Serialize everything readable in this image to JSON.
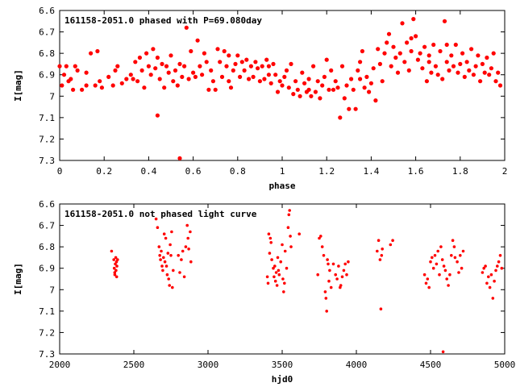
{
  "chart_data": [
    {
      "type": "scatter",
      "title": "161158-2051.0 phased with P=69.080day",
      "xlabel": "phase",
      "ylabel": "I[mag]",
      "xlim": [
        0,
        2
      ],
      "ylim": [
        6.6,
        7.3
      ],
      "y_inverted": true,
      "xticks": [
        "0",
        "0.2",
        "0.4",
        "0.6",
        "0.8",
        "1",
        "1.2",
        "1.4",
        "1.6",
        "1.8",
        "2"
      ],
      "yticks": [
        "6.6",
        "6.7",
        "6.8",
        "6.9",
        "7",
        "7.1",
        "7.2",
        "7.3"
      ],
      "marker_color": "#ff0000",
      "grid": false,
      "points": [
        [
          0.0,
          6.86
        ],
        [
          0.01,
          6.95
        ],
        [
          0.02,
          6.9
        ],
        [
          0.03,
          6.86
        ],
        [
          0.04,
          6.93
        ],
        [
          0.05,
          6.92
        ],
        [
          0.06,
          6.97
        ],
        [
          0.07,
          6.86
        ],
        [
          0.1,
          6.97
        ],
        [
          0.12,
          6.89
        ],
        [
          0.14,
          6.8
        ],
        [
          0.16,
          6.95
        ],
        [
          0.17,
          6.79
        ],
        [
          0.18,
          6.93
        ],
        [
          0.19,
          6.96
        ],
        [
          0.22,
          6.91
        ],
        [
          0.24,
          6.95
        ],
        [
          0.26,
          6.86
        ],
        [
          0.28,
          6.94
        ],
        [
          0.3,
          6.92
        ],
        [
          0.32,
          6.9
        ],
        [
          0.34,
          6.84
        ],
        [
          0.35,
          6.93
        ],
        [
          0.36,
          6.82
        ],
        [
          0.37,
          6.88
        ],
        [
          0.38,
          6.96
        ],
        [
          0.39,
          6.8
        ],
        [
          0.4,
          6.86
        ],
        [
          0.41,
          6.9
        ],
        [
          0.42,
          6.78
        ],
        [
          0.43,
          6.87
        ],
        [
          0.44,
          6.82
        ],
        [
          0.44,
          7.09
        ],
        [
          0.45,
          6.92
        ],
        [
          0.46,
          6.85
        ],
        [
          0.47,
          6.96
        ],
        [
          0.48,
          6.86
        ],
        [
          0.49,
          6.89
        ],
        [
          0.5,
          6.81
        ],
        [
          0.51,
          6.93
        ],
        [
          0.52,
          6.88
        ],
        [
          0.53,
          6.95
        ],
        [
          0.54,
          6.85
        ],
        [
          0.55,
          6.91
        ],
        [
          0.56,
          6.86
        ],
        [
          0.57,
          6.68
        ],
        [
          0.58,
          6.92
        ],
        [
          0.59,
          6.79
        ],
        [
          0.6,
          6.89
        ],
        [
          0.61,
          6.91
        ],
        [
          0.62,
          6.74
        ],
        [
          0.63,
          6.86
        ],
        [
          0.64,
          6.9
        ],
        [
          0.65,
          6.8
        ],
        [
          0.66,
          6.84
        ],
        [
          0.67,
          6.97
        ],
        [
          0.68,
          6.88
        ],
        [
          0.69,
          6.93
        ],
        [
          0.7,
          6.97
        ],
        [
          0.71,
          6.78
        ],
        [
          0.72,
          6.84
        ],
        [
          0.73,
          6.91
        ],
        [
          0.74,
          6.79
        ],
        [
          0.75,
          6.86
        ],
        [
          0.76,
          6.93
        ],
        [
          0.77,
          6.96
        ],
        [
          0.78,
          6.88
        ],
        [
          0.79,
          6.85
        ],
        [
          0.8,
          6.81
        ],
        [
          0.81,
          6.91
        ],
        [
          0.82,
          6.84
        ],
        [
          0.83,
          6.88
        ],
        [
          0.84,
          6.83
        ],
        [
          0.85,
          6.92
        ],
        [
          0.86,
          6.86
        ],
        [
          0.87,
          6.91
        ],
        [
          0.88,
          6.84
        ],
        [
          0.89,
          6.87
        ],
        [
          0.9,
          6.93
        ],
        [
          0.91,
          6.86
        ],
        [
          0.92,
          6.92
        ],
        [
          0.93,
          6.83
        ],
        [
          0.94,
          6.9
        ],
        [
          0.95,
          6.94
        ],
        [
          0.96,
          6.85
        ],
        [
          0.97,
          6.9
        ],
        [
          0.98,
          6.98
        ],
        [
          0.99,
          6.93
        ],
        [
          1.0,
          6.95
        ],
        [
          1.01,
          6.91
        ],
        [
          1.02,
          6.88
        ],
        [
          1.03,
          6.96
        ],
        [
          1.04,
          6.85
        ],
        [
          1.05,
          6.99
        ],
        [
          1.06,
          6.93
        ],
        [
          1.07,
          6.97
        ],
        [
          1.08,
          7.0
        ],
        [
          1.09,
          6.89
        ],
        [
          1.1,
          6.94
        ],
        [
          1.11,
          6.98
        ],
        [
          1.12,
          6.92
        ],
        [
          1.13,
          7.0
        ],
        [
          1.14,
          6.86
        ],
        [
          1.15,
          6.98
        ],
        [
          1.16,
          6.93
        ],
        [
          1.17,
          7.01
        ],
        [
          1.18,
          6.95
        ],
        [
          1.19,
          6.91
        ],
        [
          1.2,
          6.83
        ],
        [
          1.21,
          6.97
        ],
        [
          1.22,
          6.88
        ],
        [
          1.23,
          6.97
        ],
        [
          1.24,
          6.93
        ],
        [
          1.25,
          6.96
        ],
        [
          1.26,
          7.1
        ],
        [
          1.27,
          6.86
        ],
        [
          1.28,
          7.01
        ],
        [
          1.29,
          6.95
        ],
        [
          1.3,
          7.06
        ],
        [
          1.31,
          6.92
        ],
        [
          1.32,
          6.97
        ],
        [
          1.33,
          7.06
        ],
        [
          1.34,
          6.88
        ],
        [
          1.35,
          6.84
        ],
        [
          1.36,
          6.79
        ],
        [
          1.37,
          6.96
        ],
        [
          1.38,
          6.91
        ],
        [
          1.39,
          6.98
        ],
        [
          1.4,
          6.94
        ],
        [
          1.41,
          6.87
        ],
        [
          1.42,
          7.02
        ],
        [
          1.43,
          6.78
        ],
        [
          1.44,
          6.85
        ],
        [
          1.45,
          6.93
        ],
        [
          1.46,
          6.8
        ],
        [
          1.47,
          6.75
        ],
        [
          1.48,
          6.71
        ],
        [
          1.49,
          6.86
        ],
        [
          1.5,
          6.77
        ],
        [
          1.51,
          6.82
        ],
        [
          1.52,
          6.89
        ],
        [
          1.53,
          6.8
        ],
        [
          1.54,
          6.66
        ],
        [
          1.55,
          6.84
        ],
        [
          1.56,
          6.75
        ],
        [
          1.57,
          6.88
        ],
        [
          1.58,
          6.79
        ],
        [
          1.59,
          6.64
        ],
        [
          1.6,
          6.72
        ],
        [
          1.61,
          6.83
        ],
        [
          1.62,
          6.8
        ],
        [
          1.63,
          6.87
        ],
        [
          1.64,
          6.77
        ],
        [
          1.65,
          6.93
        ],
        [
          1.66,
          6.84
        ],
        [
          1.67,
          6.89
        ],
        [
          1.68,
          6.76
        ],
        [
          1.69,
          6.86
        ],
        [
          1.7,
          6.9
        ],
        [
          1.71,
          6.79
        ],
        [
          1.72,
          6.92
        ],
        [
          1.73,
          6.65
        ],
        [
          1.74,
          6.84
        ],
        [
          1.75,
          6.88
        ],
        [
          1.76,
          6.81
        ],
        [
          1.77,
          6.86
        ],
        [
          1.78,
          6.76
        ],
        [
          1.79,
          6.89
        ],
        [
          1.8,
          6.85
        ],
        [
          1.81,
          6.8
        ],
        [
          1.82,
          6.91
        ],
        [
          1.83,
          6.84
        ],
        [
          1.84,
          6.88
        ],
        [
          1.85,
          6.78
        ],
        [
          1.86,
          6.9
        ],
        [
          1.87,
          6.86
        ],
        [
          1.88,
          6.81
        ],
        [
          1.89,
          6.93
        ],
        [
          1.9,
          6.85
        ],
        [
          1.91,
          6.89
        ],
        [
          1.92,
          6.82
        ],
        [
          1.93,
          6.9
        ],
        [
          1.94,
          6.87
        ],
        [
          1.95,
          6.8
        ],
        [
          1.96,
          6.93
        ],
        [
          1.97,
          6.89
        ],
        [
          1.98,
          6.95
        ],
        [
          0.54,
          7.29
        ],
        [
          0.12,
          6.95
        ],
        [
          0.08,
          6.88
        ],
        [
          0.25,
          6.88
        ],
        [
          0.33,
          6.92
        ],
        [
          1.12,
          6.97
        ],
        [
          1.35,
          6.92
        ],
        [
          1.58,
          6.73
        ],
        [
          1.66,
          6.81
        ],
        [
          1.74,
          6.76
        ],
        [
          0.76,
          6.81
        ],
        [
          0.94,
          6.86
        ]
      ]
    },
    {
      "type": "scatter",
      "title": "161158-2051.0 not phased light curve",
      "xlabel": "hjd0",
      "ylabel": "I[mag]",
      "xlim": [
        2000,
        5000
      ],
      "ylim": [
        6.6,
        7.3
      ],
      "y_inverted": true,
      "xticks": [
        "2000",
        "2500",
        "3000",
        "3500",
        "4000",
        "4500",
        "5000"
      ],
      "yticks": [
        "6.6",
        "6.7",
        "6.8",
        "6.9",
        "7",
        "7.1",
        "7.2",
        "7.3"
      ],
      "marker_color": "#ff0000",
      "grid": false,
      "points": [
        [
          2350,
          6.82
        ],
        [
          2365,
          6.86
        ],
        [
          2368,
          6.9
        ],
        [
          2372,
          6.93
        ],
        [
          2375,
          6.88
        ],
        [
          2378,
          6.85
        ],
        [
          2380,
          6.91
        ],
        [
          2383,
          6.87
        ],
        [
          2386,
          6.89
        ],
        [
          2390,
          6.86
        ],
        [
          2371,
          6.92
        ],
        [
          2384,
          6.94
        ],
        [
          2650,
          6.67
        ],
        [
          2660,
          6.71
        ],
        [
          2670,
          6.8
        ],
        [
          2675,
          6.84
        ],
        [
          2680,
          6.86
        ],
        [
          2685,
          6.82
        ],
        [
          2690,
          6.89
        ],
        [
          2695,
          6.91
        ],
        [
          2700,
          6.85
        ],
        [
          2705,
          6.74
        ],
        [
          2710,
          6.87
        ],
        [
          2715,
          6.76
        ],
        [
          2720,
          6.89
        ],
        [
          2725,
          6.93
        ],
        [
          2730,
          6.83
        ],
        [
          2735,
          6.95
        ],
        [
          2740,
          6.98
        ],
        [
          2745,
          6.79
        ],
        [
          2750,
          6.84
        ],
        [
          2755,
          6.73
        ],
        [
          2760,
          6.99
        ],
        [
          2765,
          6.91
        ],
        [
          2800,
          6.84
        ],
        [
          2810,
          6.92
        ],
        [
          2820,
          6.86
        ],
        [
          2830,
          6.82
        ],
        [
          2840,
          6.94
        ],
        [
          2850,
          6.8
        ],
        [
          2860,
          6.7
        ],
        [
          2865,
          6.76
        ],
        [
          2870,
          6.81
        ],
        [
          2880,
          6.73
        ],
        [
          2885,
          6.87
        ],
        [
          3400,
          6.94
        ],
        [
          3405,
          6.97
        ],
        [
          3410,
          6.74
        ],
        [
          3415,
          6.83
        ],
        [
          3420,
          6.76
        ],
        [
          3425,
          6.78
        ],
        [
          3430,
          6.86
        ],
        [
          3440,
          6.9
        ],
        [
          3445,
          6.94
        ],
        [
          3450,
          6.89
        ],
        [
          3455,
          6.96
        ],
        [
          3460,
          6.92
        ],
        [
          3465,
          6.98
        ],
        [
          3470,
          6.85
        ],
        [
          3475,
          6.91
        ],
        [
          3480,
          6.93
        ],
        [
          3490,
          6.87
        ],
        [
          3500,
          6.79
        ],
        [
          3505,
          6.95
        ],
        [
          3510,
          7.01
        ],
        [
          3515,
          6.97
        ],
        [
          3520,
          6.82
        ],
        [
          3530,
          6.9
        ],
        [
          3540,
          6.71
        ],
        [
          3545,
          6.65
        ],
        [
          3550,
          6.63
        ],
        [
          3555,
          6.75
        ],
        [
          3560,
          6.8
        ],
        [
          3615,
          6.74
        ],
        [
          3740,
          6.93
        ],
        [
          3750,
          6.76
        ],
        [
          3760,
          6.75
        ],
        [
          3770,
          6.8
        ],
        [
          3780,
          6.84
        ],
        [
          3790,
          7.01
        ],
        [
          3795,
          7.04
        ],
        [
          3800,
          7.1
        ],
        [
          3805,
          6.86
        ],
        [
          3810,
          6.88
        ],
        [
          3815,
          6.96
        ],
        [
          3820,
          6.91
        ],
        [
          3830,
          6.99
        ],
        [
          3845,
          6.88
        ],
        [
          3860,
          6.93
        ],
        [
          3870,
          6.95
        ],
        [
          3880,
          6.89
        ],
        [
          3890,
          6.99
        ],
        [
          3895,
          6.98
        ],
        [
          3905,
          6.94
        ],
        [
          3915,
          6.91
        ],
        [
          3925,
          6.88
        ],
        [
          3935,
          6.93
        ],
        [
          3945,
          6.87
        ],
        [
          4140,
          6.82
        ],
        [
          4150,
          6.77
        ],
        [
          4160,
          6.86
        ],
        [
          4165,
          7.09
        ],
        [
          4170,
          6.84
        ],
        [
          4175,
          6.81
        ],
        [
          4230,
          6.79
        ],
        [
          4245,
          6.77
        ],
        [
          4460,
          6.93
        ],
        [
          4470,
          6.97
        ],
        [
          4480,
          6.95
        ],
        [
          4490,
          6.99
        ],
        [
          4500,
          6.87
        ],
        [
          4510,
          6.85
        ],
        [
          4520,
          6.9
        ],
        [
          4530,
          6.84
        ],
        [
          4540,
          6.88
        ],
        [
          4550,
          6.82
        ],
        [
          4560,
          6.93
        ],
        [
          4570,
          6.8
        ],
        [
          4580,
          6.86
        ],
        [
          4585,
          7.29
        ],
        [
          4590,
          6.89
        ],
        [
          4600,
          6.91
        ],
        [
          4610,
          6.95
        ],
        [
          4620,
          6.98
        ],
        [
          4630,
          6.93
        ],
        [
          4640,
          6.84
        ],
        [
          4650,
          6.77
        ],
        [
          4660,
          6.8
        ],
        [
          4665,
          6.85
        ],
        [
          4680,
          6.87
        ],
        [
          4690,
          6.92
        ],
        [
          4700,
          6.84
        ],
        [
          4710,
          6.9
        ],
        [
          4720,
          6.82
        ],
        [
          4850,
          6.92
        ],
        [
          4860,
          6.9
        ],
        [
          4870,
          6.89
        ],
        [
          4880,
          6.97
        ],
        [
          4890,
          6.94
        ],
        [
          4900,
          6.99
        ],
        [
          4910,
          6.93
        ],
        [
          4920,
          7.04
        ],
        [
          4930,
          6.96
        ],
        [
          4940,
          6.91
        ],
        [
          4950,
          6.89
        ],
        [
          4960,
          6.87
        ],
        [
          4970,
          6.84
        ],
        [
          4980,
          6.9
        ]
      ]
    }
  ]
}
